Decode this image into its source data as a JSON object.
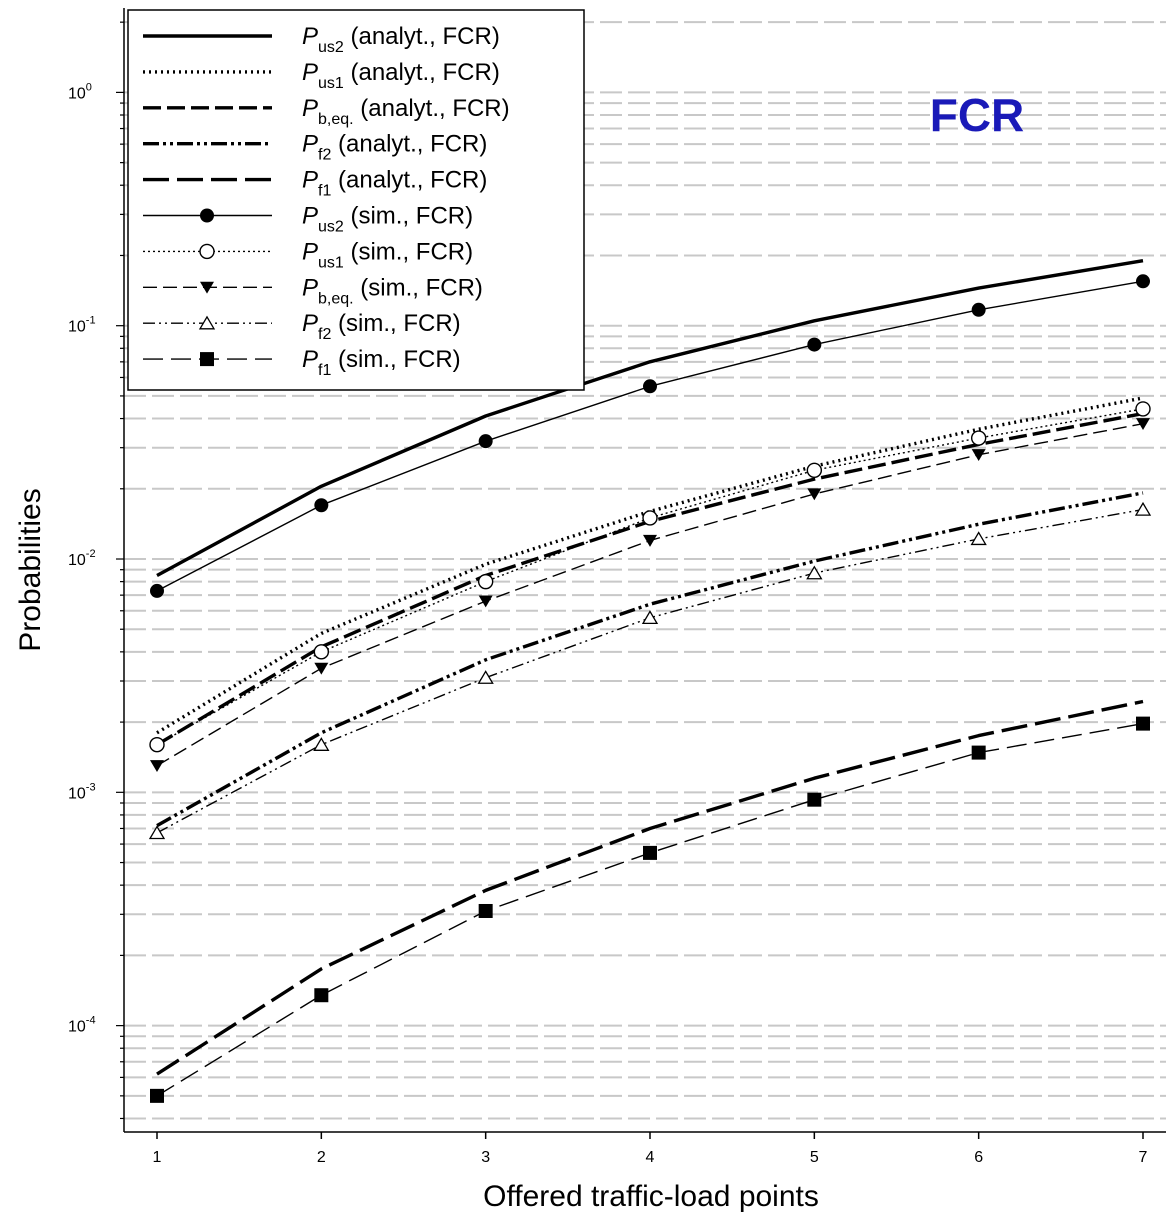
{
  "chart_data": {
    "type": "line",
    "title": "",
    "inset_label": "FCR",
    "xlabel": "Offered traffic-load points",
    "ylabel": "Probabilities",
    "y_scale": "log",
    "xlim": [
      0.8,
      7.1
    ],
    "ylim": [
      3.5e-05,
      2.3
    ],
    "grid": "horizontal dashed (major and minor)",
    "legend_position": "top-left",
    "x": [
      1,
      2,
      3,
      4,
      5,
      6,
      7
    ],
    "x_tick_labels": [
      "1",
      "2",
      "3",
      "4",
      "5",
      "6",
      "7"
    ],
    "y_ticks": [
      {
        "value": 1,
        "base": "10",
        "exp": "0"
      },
      {
        "value": 0.1,
        "base": "10",
        "exp": "-1"
      },
      {
        "value": 0.01,
        "base": "10",
        "exp": "-2"
      },
      {
        "value": 0.001,
        "base": "10",
        "exp": "-3"
      },
      {
        "value": 0.0001,
        "base": "10",
        "exp": "-4"
      }
    ],
    "series": [
      {
        "symbol": "P",
        "sub": "us2",
        "label": "(analyt., FCR)",
        "style": "solid-thick",
        "marker": "none",
        "values": [
          0.0085,
          0.0205,
          0.041,
          0.07,
          0.105,
          0.145,
          0.19
        ]
      },
      {
        "symbol": "P",
        "sub": "us1",
        "label": "(analyt., FCR)",
        "style": "dotted",
        "marker": "none",
        "values": [
          0.0018,
          0.0048,
          0.0095,
          0.016,
          0.025,
          0.036,
          0.049
        ]
      },
      {
        "symbol": "P",
        "sub": "b,eq.",
        "label": "(analyt., FCR)",
        "style": "dashed",
        "marker": "none",
        "values": [
          0.0016,
          0.0042,
          0.0085,
          0.0145,
          0.022,
          0.031,
          0.042
        ]
      },
      {
        "symbol": "P",
        "sub": "f2",
        "label": "(analyt., FCR)",
        "style": "dash-dot-dot",
        "marker": "none",
        "values": [
          0.00072,
          0.0018,
          0.0037,
          0.0064,
          0.0098,
          0.0141,
          0.0192
        ]
      },
      {
        "symbol": "P",
        "sub": "f1",
        "label": "(analyt., FCR)",
        "style": "long-dash",
        "marker": "none",
        "values": [
          6.2e-05,
          0.000175,
          0.00038,
          0.0007,
          0.00115,
          0.00175,
          0.00245
        ]
      },
      {
        "symbol": "P",
        "sub": "us2",
        "label": "(sim., FCR)",
        "style": "solid-thin",
        "marker": "filled-circle",
        "values": [
          0.0073,
          0.017,
          0.032,
          0.055,
          0.083,
          0.117,
          0.155
        ]
      },
      {
        "symbol": "P",
        "sub": "us1",
        "label": "(sim., FCR)",
        "style": "dotted-thin",
        "marker": "open-circle",
        "values": [
          0.0016,
          0.004,
          0.008,
          0.015,
          0.024,
          0.033,
          0.044
        ]
      },
      {
        "symbol": "P",
        "sub": "b,eq.",
        "label": "(sim., FCR)",
        "style": "dashed-thin",
        "marker": "filled-triangle-down",
        "values": [
          0.0013,
          0.0034,
          0.0066,
          0.012,
          0.019,
          0.028,
          0.038
        ]
      },
      {
        "symbol": "P",
        "sub": "f2",
        "label": "(sim., FCR)",
        "style": "dash-dot-dot-thin",
        "marker": "open-triangle-up",
        "values": [
          0.00067,
          0.0016,
          0.0031,
          0.0056,
          0.0087,
          0.0122,
          0.0163
        ]
      },
      {
        "symbol": "P",
        "sub": "f1",
        "label": "(sim., FCR)",
        "style": "long-dash-thin",
        "marker": "filled-square",
        "values": [
          5e-05,
          0.000135,
          0.00031,
          0.00055,
          0.00093,
          0.00148,
          0.00197
        ]
      }
    ]
  }
}
